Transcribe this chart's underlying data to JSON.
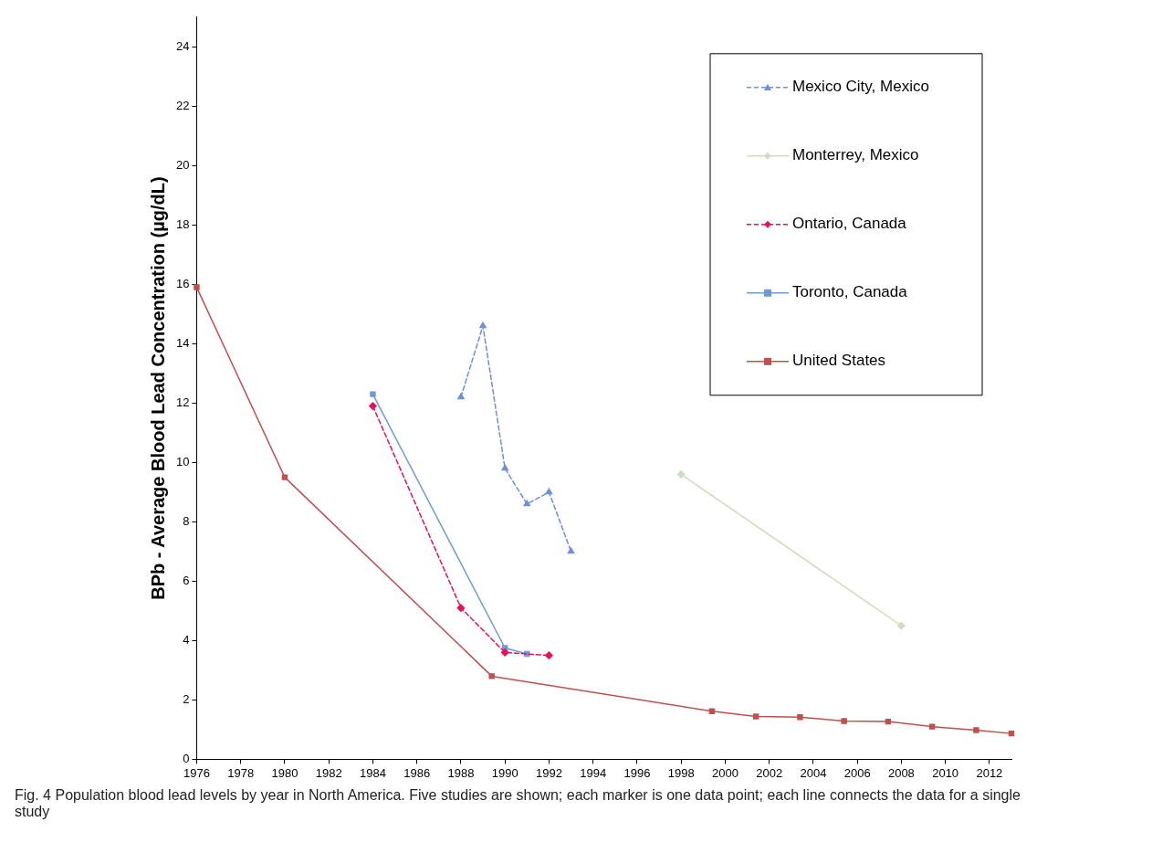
{
  "chart_data": {
    "type": "line",
    "ylabel": "BPb - Average Blood Lead Concentration (µg/dL)",
    "xlim": [
      1976,
      2013
    ],
    "xticks": [
      1976,
      1978,
      1980,
      1982,
      1984,
      1986,
      1988,
      1990,
      1992,
      1994,
      1996,
      1998,
      2000,
      2002,
      2004,
      2006,
      2008,
      2010,
      2012
    ],
    "ylim": [
      0,
      25
    ],
    "yticks": [
      0,
      2,
      4,
      6,
      8,
      10,
      12,
      14,
      16,
      18,
      20,
      22,
      24
    ],
    "grid": false,
    "legend": "top right",
    "series": [
      {
        "name": "Mexico City, Mexico",
        "color": "#6f8fd8",
        "marker": "triangle",
        "line_style": "dashed",
        "x": [
          1988,
          1989,
          1990,
          1991,
          1992,
          1993
        ],
        "values": [
          12.2,
          14.6,
          9.8,
          8.6,
          9.0,
          7.0
        ]
      },
      {
        "name": "Monterrey, Mexico",
        "color": "#d0dcbf",
        "marker": "diamond",
        "line_style": "solid",
        "x": [
          1998,
          2008
        ],
        "values": [
          9.6,
          4.5
        ]
      },
      {
        "name": "Ontario, Canada",
        "color": "#e8105a",
        "marker": "diamond",
        "line_style": "dashed",
        "x": [
          1984,
          1988,
          1990,
          1992
        ],
        "values": [
          11.9,
          5.1,
          3.6,
          3.5
        ]
      },
      {
        "name": "Toronto, Canada",
        "color": "#6f9ad6",
        "marker": "square",
        "line_style": "solid",
        "x": [
          1984,
          1990,
          1991
        ],
        "values": [
          12.3,
          3.75,
          3.55
        ]
      },
      {
        "name": "United States",
        "color": "#c0504d",
        "marker": "square",
        "line_style": "solid",
        "x": [
          1976,
          1980,
          1989.4,
          1999.4,
          2001.4,
          2003.4,
          2005.4,
          2007.4,
          2009.4,
          2011.4,
          2013
        ],
        "values": [
          15.9,
          9.5,
          2.8,
          1.62,
          1.44,
          1.42,
          1.29,
          1.27,
          1.1,
          0.98,
          0.87
        ]
      }
    ],
    "annotations": [
      "Fig. 4 Population blood lead levels by year in North America. Five studies are shown; each marker is one data point; each line connects the data for a single study"
    ]
  }
}
